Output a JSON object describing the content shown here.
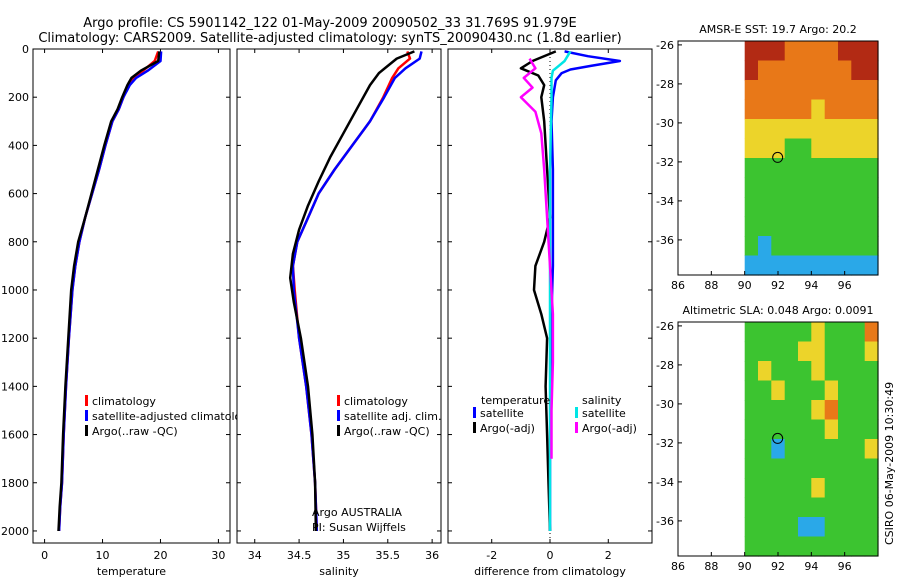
{
  "header": {
    "line1": "Argo profile: CS 5901142_122 01-May-2009 20090502_33 31.769S 91.979E",
    "line2": "Climatology: CARS2009. Satellite-adjusted climatology: synTS_20090430.nc (1.8d earlier)"
  },
  "footer": {
    "org_label": "Argo AUSTRALIA",
    "pi_label": "PI: Susan Wijffels",
    "stamp": "CSIRO 06-May-2009 10:30:49"
  },
  "colors": {
    "climatology": "#ff0000",
    "satellite": "#0000ff",
    "argo": "#000000",
    "sal_satellite": "#00e5e5",
    "sal_argo": "#ff00ff"
  },
  "chart_data": [
    {
      "id": "temperature",
      "type": "line",
      "xlabel": "temperature",
      "ylabel": "",
      "xlim": [
        -2,
        32
      ],
      "ylim": [
        2050,
        0
      ],
      "y_reversed": true,
      "xticks": [
        0,
        10,
        20,
        30
      ],
      "yticks": [
        0,
        200,
        400,
        600,
        800,
        1000,
        1200,
        1400,
        1600,
        1800,
        2000
      ],
      "legend": [
        "climatology",
        "satellite-adjusted climatology",
        "Argo(..raw -QC)"
      ],
      "legend_placement": "lower-right",
      "series": [
        {
          "name": "climatology",
          "color": "#ff0000",
          "x": [
            19.6,
            19.0,
            17.0,
            15.3,
            14.5,
            13.6,
            12.8,
            11.7,
            10.5,
            9.4,
            8.2,
            7.0,
            6.0,
            5.3,
            4.8,
            4.2,
            3.7,
            3.3,
            3.0,
            2.7,
            2.5
          ],
          "y": [
            10,
            50,
            90,
            120,
            150,
            200,
            250,
            300,
            400,
            500,
            600,
            700,
            800,
            900,
            1000,
            1200,
            1400,
            1600,
            1800,
            1900,
            2000
          ]
        },
        {
          "name": "satellite-adjusted climatology",
          "color": "#0000ff",
          "x": [
            20.1,
            20.0,
            17.8,
            15.8,
            14.7,
            13.6,
            12.8,
            11.7,
            10.5,
            9.4,
            8.2,
            7.0,
            6.0,
            5.3,
            4.8,
            4.2,
            3.7,
            3.3,
            3.0,
            2.7,
            2.5
          ],
          "y": [
            10,
            50,
            90,
            120,
            150,
            200,
            250,
            300,
            400,
            500,
            600,
            700,
            800,
            900,
            1000,
            1200,
            1400,
            1600,
            1800,
            1900,
            2000
          ]
        },
        {
          "name": "Argo(..raw -QC)",
          "color": "#000000",
          "x": [
            19.8,
            19.6,
            16.6,
            15.0,
            14.3,
            13.4,
            12.6,
            11.5,
            10.3,
            9.2,
            8.1,
            7.0,
            5.8,
            5.1,
            4.6,
            4.1,
            3.6,
            3.2,
            2.9,
            2.6,
            2.4
          ],
          "y": [
            10,
            50,
            90,
            120,
            150,
            200,
            250,
            300,
            400,
            500,
            600,
            700,
            800,
            900,
            1000,
            1200,
            1400,
            1600,
            1800,
            1900,
            2000
          ]
        }
      ]
    },
    {
      "id": "salinity",
      "type": "line",
      "xlabel": "salinity",
      "ylabel": "",
      "xlim": [
        33.8,
        36.1
      ],
      "ylim": [
        2050,
        0
      ],
      "y_reversed": true,
      "xticks": [
        34,
        34.5,
        35,
        35.5,
        36
      ],
      "yticks": [
        0,
        200,
        400,
        600,
        800,
        1000,
        1200,
        1400,
        1600,
        1800,
        2000
      ],
      "legend": [
        "climatology",
        "satellite adj. clim.",
        "Argo(..raw -QC)"
      ],
      "legend_placement": "lower-right",
      "series": [
        {
          "name": "climatology",
          "color": "#ff0000",
          "x": [
            35.72,
            35.75,
            35.62,
            35.55,
            35.45,
            35.3,
            35.1,
            34.9,
            34.72,
            34.6,
            34.48,
            34.43,
            34.45,
            34.5,
            34.58,
            34.64,
            34.68,
            34.7
          ],
          "y": [
            10,
            40,
            80,
            120,
            200,
            300,
            400,
            500,
            600,
            700,
            800,
            900,
            1000,
            1200,
            1400,
            1600,
            1800,
            2000
          ]
        },
        {
          "name": "satellite adj. clim.",
          "color": "#0000ff",
          "x": [
            35.88,
            35.86,
            35.7,
            35.58,
            35.46,
            35.3,
            35.1,
            34.9,
            34.72,
            34.6,
            34.48,
            34.43,
            34.44,
            34.5,
            34.58,
            34.64,
            34.68,
            34.7
          ],
          "y": [
            10,
            40,
            80,
            120,
            200,
            300,
            400,
            500,
            600,
            700,
            800,
            900,
            1000,
            1200,
            1400,
            1600,
            1800,
            2000
          ]
        },
        {
          "name": "Argo(..raw -QC)",
          "color": "#000000",
          "x": [
            35.8,
            35.6,
            35.4,
            35.3,
            35.15,
            35.0,
            34.85,
            34.72,
            34.6,
            34.5,
            34.43,
            34.4,
            34.44,
            34.52,
            34.6,
            34.65,
            34.68,
            34.69
          ],
          "y": [
            10,
            40,
            100,
            150,
            250,
            350,
            450,
            550,
            650,
            750,
            850,
            950,
            1050,
            1200,
            1400,
            1600,
            1800,
            2000
          ]
        }
      ]
    },
    {
      "id": "difference",
      "type": "line",
      "xlabel": "difference from climatology",
      "ylabel": "",
      "xlim": [
        -3.5,
        3.5
      ],
      "ylim": [
        2050,
        0
      ],
      "y_reversed": true,
      "xticks": [
        -2,
        0,
        2
      ],
      "yticks": [
        0,
        200,
        400,
        600,
        800,
        1000,
        1200,
        1400,
        1600,
        1800,
        2000
      ],
      "legend_groups": {
        "temperature": [
          "satellite",
          "Argo(-adj)"
        ],
        "salinity": [
          "satellite",
          "Argo(-adj)"
        ]
      },
      "legend_placement": "lower-center",
      "series": [
        {
          "name": "temperature satellite",
          "color": "#0000ff",
          "x": [
            0.5,
            1.3,
            2.4,
            1.4,
            0.7,
            0.4,
            0.2,
            0.1,
            0.05,
            0.1,
            0.1,
            0.1,
            0.05,
            0.05,
            0.0,
            0.0
          ],
          "y": [
            10,
            30,
            50,
            70,
            85,
            100,
            130,
            200,
            300,
            500,
            700,
            900,
            1100,
            1400,
            1700,
            2000
          ]
        },
        {
          "name": "temperature Argo(-adj)",
          "color": "#000000",
          "x": [
            0.2,
            -0.6,
            -1.0,
            -0.4,
            -0.2,
            -0.3,
            -0.2,
            -0.1,
            0.0,
            -0.2,
            -0.5,
            -0.55,
            -0.3,
            -0.1,
            -0.15,
            -0.1,
            -0.05,
            0.0
          ],
          "y": [
            10,
            50,
            80,
            110,
            150,
            200,
            300,
            500,
            700,
            800,
            900,
            1000,
            1100,
            1200,
            1400,
            1600,
            1800,
            2000
          ]
        },
        {
          "name": "salinity satellite",
          "color": "#00e5e5",
          "x": [
            0.7,
            0.6,
            0.5,
            0.3,
            0.1,
            0.05,
            0.05,
            0.0,
            0.0,
            0.0,
            0.0,
            0.0
          ],
          "y": [
            10,
            30,
            50,
            70,
            90,
            120,
            200,
            500,
            900,
            1300,
            1700,
            2000
          ]
        },
        {
          "name": "salinity Argo(-adj)",
          "color": "#ff00ff",
          "x": [
            -0.7,
            -0.5,
            -0.9,
            -0.6,
            -1.0,
            -0.5,
            -0.3,
            -0.2,
            -0.1,
            0.0,
            0.1,
            0.1,
            0.05,
            0.05
          ],
          "y": [
            40,
            80,
            120,
            160,
            200,
            260,
            350,
            500,
            700,
            900,
            1100,
            1300,
            1500,
            1700
          ]
        }
      ]
    },
    {
      "id": "sst_map",
      "type": "heatmap",
      "title": "AMSR-E SST: 19.7 Argo: 20.2",
      "xlim": [
        86,
        98
      ],
      "ylim": [
        -37.8,
        -25.8
      ],
      "xticks": [
        86,
        88,
        90,
        92,
        94,
        96
      ],
      "yticks": [
        -26,
        -28,
        -30,
        -32,
        -34,
        -36
      ],
      "data_extent": {
        "lon": [
          90,
          98
        ]
      },
      "marker": {
        "lon": 91.98,
        "lat": -31.77
      },
      "colormap": "jet",
      "grid": [
        "RRROOOORRR",
        "ROOOOOOORR",
        "OOOOOOOOOO",
        "OOOOOYOOOO",
        "YYYYYYYYYY",
        "YYYGGYYYYY",
        "GGGGGGGGGG",
        "GGGGGGGGGG",
        "GGGGGGGGGG",
        "GGGGGGGGGG",
        "GCGGGGGGGG",
        "CCCCCCCCCC"
      ]
    },
    {
      "id": "sla_map",
      "type": "heatmap",
      "title": "Altimetric SLA: 0.048 Argo: 0.0091",
      "xlim": [
        86,
        98
      ],
      "ylim": [
        -37.8,
        -25.8
      ],
      "xticks": [
        86,
        88,
        90,
        92,
        94,
        96
      ],
      "yticks": [
        -26,
        -28,
        -30,
        -32,
        -34,
        -36
      ],
      "data_extent": {
        "lon": [
          90,
          98
        ]
      },
      "marker": {
        "lon": 91.98,
        "lat": -31.77
      },
      "colormap": "jet",
      "grid": [
        "GGGGGYGGGO",
        "GGGGYYGGGY",
        "GYGGGYGGGG",
        "GGYGGGYGGG",
        "GGGGGYOGGG",
        "GGGGGGYGGG",
        "GGCGGGGGGY",
        "GGGGGGGGGG",
        "GGGGGYGGGG",
        "GGGGGGGGGG",
        "GGGGCCGGGG",
        "GGGGGGGGGG"
      ]
    }
  ]
}
